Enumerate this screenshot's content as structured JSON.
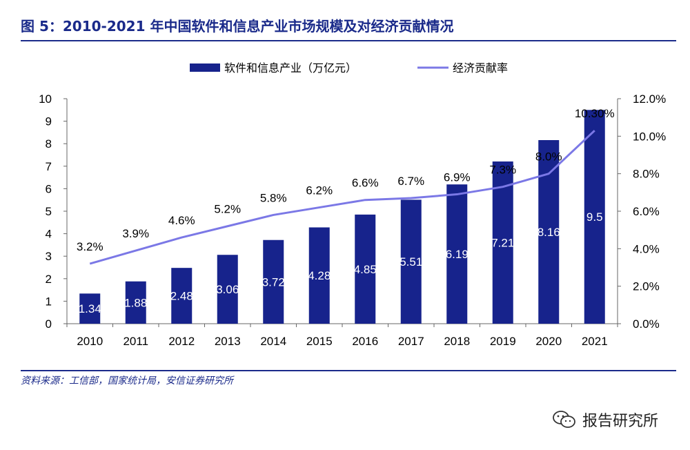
{
  "header": {
    "title": "图 5：2010-2021 年中国软件和信息产业市场规模及对经济贡献情况"
  },
  "source": "资料来源：工信部，国家统计局，安信证券研究所",
  "watermark": {
    "text": "报告研究所",
    "icon": "wechat-icon"
  },
  "colors": {
    "bar": "#17238c",
    "line": "#7b78e6",
    "title": "#1a2a8a"
  },
  "chart_data": {
    "type": "bar",
    "categories": [
      "2010",
      "2011",
      "2012",
      "2013",
      "2014",
      "2015",
      "2016",
      "2017",
      "2018",
      "2019",
      "2020",
      "2021"
    ],
    "series": [
      {
        "name": "软件和信息产业（万亿元）",
        "type": "bar",
        "axis": "left",
        "values": [
          1.34,
          1.88,
          2.48,
          3.06,
          3.72,
          4.28,
          4.85,
          5.51,
          6.19,
          7.21,
          8.16,
          9.5
        ],
        "labels": [
          "1.34",
          "1.88",
          "2.48",
          "3.06",
          "3.72",
          "4.28",
          "4.85",
          "5.51",
          "6.19",
          "7.21",
          "8.16",
          "9.5"
        ]
      },
      {
        "name": "经济贡献率",
        "type": "line",
        "axis": "right",
        "values": [
          3.2,
          3.9,
          4.6,
          5.2,
          5.8,
          6.2,
          6.6,
          6.7,
          6.9,
          7.3,
          8.0,
          10.3
        ],
        "labels": [
          "3.2%",
          "3.9%",
          "4.6%",
          "5.2%",
          "5.8%",
          "6.2%",
          "6.6%",
          "6.7%",
          "6.9%",
          "7.3%",
          "8.0%",
          "10.30%"
        ]
      }
    ],
    "y_left": {
      "ylim": [
        0,
        10
      ],
      "ticks": [
        "0",
        "1",
        "2",
        "3",
        "4",
        "5",
        "6",
        "7",
        "8",
        "9",
        "10"
      ]
    },
    "y_right": {
      "ylim": [
        0,
        12
      ],
      "ticks": [
        "0.0%",
        "2.0%",
        "4.0%",
        "6.0%",
        "8.0%",
        "10.0%",
        "12.0%"
      ]
    },
    "legend_position": "top-center",
    "grid": false
  }
}
